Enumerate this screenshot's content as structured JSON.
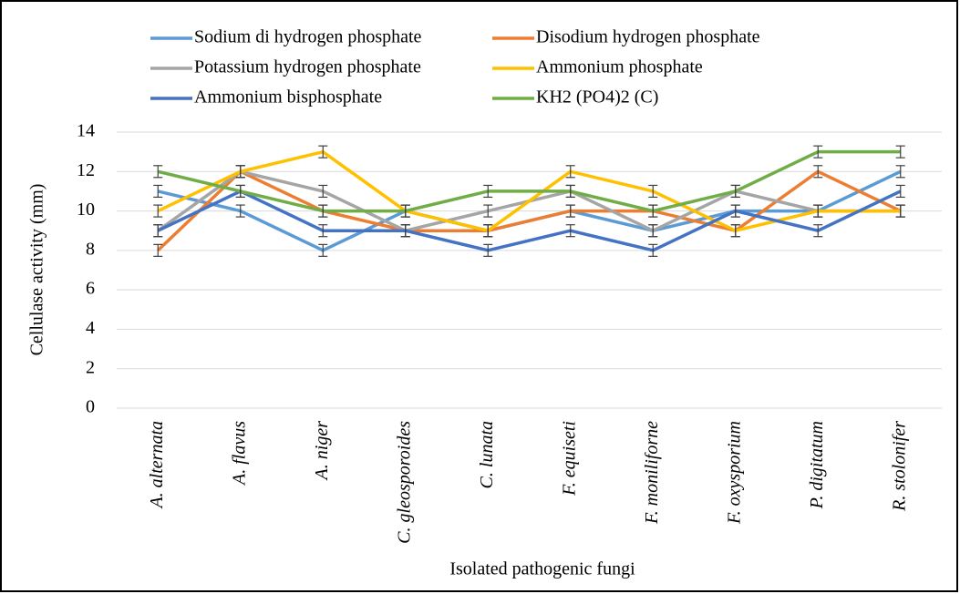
{
  "chart_data": {
    "type": "line",
    "x_label": "Isolated pathogenic fungi",
    "y_label": "Cellulase activity (mm)",
    "categories": [
      "A. alternata",
      "A. flavus",
      "A. niger",
      "C. gleosporoides",
      "C. lunata",
      "F. equiseti",
      "F. moniliforne",
      "F. oxysporium",
      "P. digitatum",
      "R. stolonifer"
    ],
    "ylim": [
      0,
      14
    ],
    "yticks": [
      0,
      2,
      4,
      6,
      8,
      10,
      12,
      14
    ],
    "grid": true,
    "series": [
      {
        "name": "Sodium di hydrogen phosphate",
        "color": "#5b9bd5",
        "values": [
          11,
          10,
          8,
          10,
          9,
          10,
          9,
          10,
          10,
          12
        ],
        "errors": [
          0.3,
          0.3,
          0.3,
          0.3,
          0.3,
          0.3,
          0.3,
          0.3,
          0.3,
          0.3
        ]
      },
      {
        "name": "Disodium hydrogen phosphate",
        "color": "#ed7d31",
        "values": [
          8,
          12,
          10,
          9,
          9,
          10,
          10,
          9,
          12,
          10
        ],
        "errors": [
          0.3,
          0.3,
          0.3,
          0.3,
          0.3,
          0.3,
          0.3,
          0.3,
          0.3,
          0.3
        ]
      },
      {
        "name": "Potassium hydrogen phosphate",
        "color": "#a5a5a5",
        "values": [
          9,
          12,
          11,
          9,
          10,
          11,
          9,
          11,
          10,
          10
        ],
        "errors": [
          0.3,
          0.3,
          0.3,
          0.3,
          0.3,
          0.3,
          0.3,
          0.3,
          0.3,
          0.3
        ]
      },
      {
        "name": "Ammonium phosphate",
        "color": "#ffc000",
        "values": [
          10,
          12,
          13,
          10,
          9,
          12,
          11,
          9,
          10,
          10
        ],
        "errors": [
          0.3,
          0.3,
          0.3,
          0.3,
          0.3,
          0.3,
          0.3,
          0.3,
          0.3,
          0.3
        ]
      },
      {
        "name": "Ammonium bisphosphate",
        "color": "#4472c4",
        "values": [
          9,
          11,
          9,
          9,
          8,
          9,
          8,
          10,
          9,
          11
        ],
        "errors": [
          0.3,
          0.3,
          0.3,
          0.3,
          0.3,
          0.3,
          0.3,
          0.3,
          0.3,
          0.3
        ]
      },
      {
        "name": "KH2 (PO4)2 (C)",
        "color": "#70ad47",
        "values": [
          12,
          11,
          10,
          10,
          11,
          11,
          10,
          11,
          13,
          13
        ],
        "errors": [
          0.3,
          0.3,
          0.3,
          0.3,
          0.3,
          0.3,
          0.3,
          0.3,
          0.3,
          0.3
        ]
      }
    ]
  }
}
